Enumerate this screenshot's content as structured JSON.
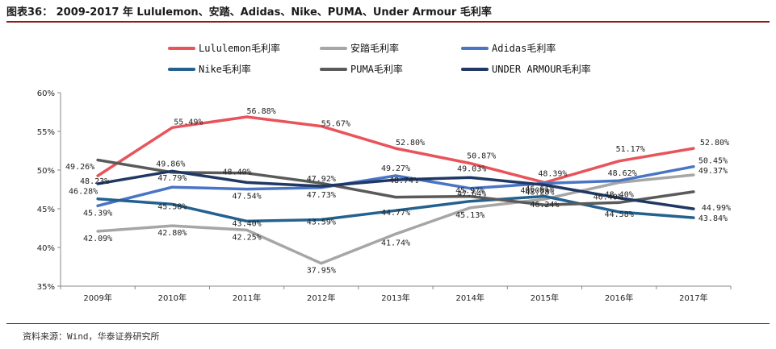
{
  "figure": {
    "title": "图表36：  2009-2017 年 Lululemon、安踏、Adidas、Nike、PUMA、Under Armour 毛利率",
    "source": "资料来源：Wind，华泰证券研究所"
  },
  "chart_data": {
    "type": "line",
    "title": "",
    "xlabel": "",
    "ylabel": "",
    "categories": [
      "2009年",
      "2010年",
      "2011年",
      "2012年",
      "2013年",
      "2014年",
      "2015年",
      "2016年",
      "2017年"
    ],
    "ylim": [
      35,
      60
    ],
    "yticks": [
      35,
      40,
      45,
      50,
      55,
      60
    ],
    "ytick_labels": [
      "35%",
      "40%",
      "45%",
      "50%",
      "55%",
      "60%"
    ],
    "grid": false,
    "legend_position": "top",
    "series": [
      {
        "name": "Lululemon毛利率",
        "color": "#e8545a",
        "values": [
          49.26,
          55.49,
          56.88,
          55.67,
          52.8,
          50.87,
          48.39,
          51.17,
          52.8
        ],
        "labels": [
          "49.26%",
          "55.49%",
          "56.88%",
          "55.67%",
          "52.80%",
          "50.87%",
          "48.39%",
          "51.17%",
          "52.80%"
        ]
      },
      {
        "name": "安踏毛利率",
        "color": "#a6a6a6",
        "values": [
          42.09,
          42.8,
          42.25,
          37.95,
          41.74,
          45.13,
          46.24,
          48.4,
          49.37
        ],
        "labels": [
          "42.09%",
          "42.80%",
          "42.25%",
          "37.95%",
          "41.74%",
          "45.13%",
          "46.24%",
          "48.40%",
          "49.37%"
        ]
      },
      {
        "name": "Adidas毛利率",
        "color": "#4a74c4",
        "values": [
          45.39,
          47.79,
          47.54,
          47.73,
          49.27,
          47.64,
          48.28,
          48.62,
          50.45
        ],
        "labels": [
          "45.39%",
          "47.79%",
          "47.54%",
          "47.73%",
          "49.27%",
          "47.64%",
          "48.28%",
          "48.62%",
          "50.45%"
        ]
      },
      {
        "name": "Nike毛利率",
        "color": "#23618f",
        "values": [
          46.28,
          45.58,
          43.4,
          43.59,
          44.77,
          45.97,
          46.61,
          44.58,
          43.84
        ],
        "labels": [
          "46.28%",
          "45.58%",
          "43.40%",
          "43.59%",
          "44.77%",
          "45.97%",
          "46.61%",
          "44.58%",
          "43.84%"
        ]
      },
      {
        "name": "PUMA毛利率",
        "color": "#5a5a5a",
        "values": [
          51.3,
          49.7,
          49.6,
          48.3,
          46.5,
          46.6,
          45.5,
          45.8,
          47.2
        ],
        "labels": []
      },
      {
        "name": "UNDER ARMOUR毛利率",
        "color": "#1f3864",
        "values": [
          48.23,
          49.86,
          48.4,
          47.92,
          48.74,
          49.03,
          48.08,
          46.4,
          44.99
        ],
        "labels": [
          "48.23%",
          "49.86%",
          "48.40%",
          "47.92%",
          "48.74%",
          "49.03%",
          "48.08%",
          "46.40%",
          "44.99%"
        ]
      }
    ]
  }
}
